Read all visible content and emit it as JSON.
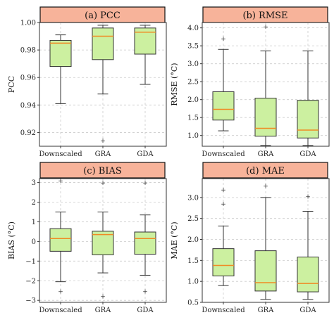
{
  "colors": {
    "box_fill": "#ccf0a0",
    "median": "#f08a24",
    "title_fill": "#f7b39a",
    "grid": "#cccccc",
    "frame": "#333333"
  },
  "chart_data": [
    {
      "type": "box",
      "title": "(a) PCC",
      "ylabel": "PCC",
      "ylim": [
        0.91,
        1.0
      ],
      "yticks": [
        0.92,
        0.94,
        0.96,
        0.98,
        1.0
      ],
      "ytick_labels": [
        "0.92",
        "0.94",
        "0.96",
        "0.98",
        "1.00"
      ],
      "categories": [
        "Downscaled",
        "GRA",
        "GDA"
      ],
      "boxes": [
        {
          "whisker_low": 0.941,
          "q1": 0.968,
          "median": 0.985,
          "q3": 0.987,
          "whisker_high": 0.991,
          "outliers": []
        },
        {
          "whisker_low": 0.948,
          "q1": 0.973,
          "median": 0.99,
          "q3": 0.996,
          "whisker_high": 0.998,
          "outliers": [
            0.914
          ]
        },
        {
          "whisker_low": 0.955,
          "q1": 0.977,
          "median": 0.993,
          "q3": 0.996,
          "whisker_high": 0.998,
          "outliers": []
        }
      ],
      "grid": true
    },
    {
      "type": "box",
      "title": "(b) RMSE",
      "ylabel": "RMSE (°C)",
      "ylim": [
        0.7,
        4.15
      ],
      "yticks": [
        1.0,
        1.5,
        2.0,
        2.5,
        3.0,
        3.5,
        4.0
      ],
      "ytick_labels": [
        "1.0",
        "1.5",
        "2.0",
        "2.5",
        "3.0",
        "3.5",
        "4.0"
      ],
      "categories": [
        "Downscaled",
        "GRA",
        "GDA"
      ],
      "boxes": [
        {
          "whisker_low": 1.13,
          "q1": 1.43,
          "median": 1.73,
          "q3": 2.22,
          "whisker_high": 3.4,
          "outliers": [
            3.7
          ]
        },
        {
          "whisker_low": 0.72,
          "q1": 0.98,
          "median": 1.2,
          "q3": 2.04,
          "whisker_high": 3.36,
          "outliers": [
            4.03
          ]
        },
        {
          "whisker_low": 0.72,
          "q1": 0.93,
          "median": 1.15,
          "q3": 1.98,
          "whisker_high": 3.36,
          "outliers": []
        }
      ],
      "grid": true
    },
    {
      "type": "box",
      "title": "(c) BIAS",
      "ylabel": "BIAS (°C)",
      "ylim": [
        -3.1,
        3.2
      ],
      "yticks": [
        -3,
        -2,
        -1,
        0,
        1,
        2,
        3
      ],
      "ytick_labels": [
        "−3",
        "−2",
        "−1",
        "0",
        "1",
        "2",
        "3"
      ],
      "categories": [
        "Downscaled",
        "GRA",
        "GDA"
      ],
      "boxes": [
        {
          "whisker_low": -2.05,
          "q1": -0.5,
          "median": 0.15,
          "q3": 0.65,
          "whisker_high": 1.5,
          "outliers": [
            -2.55,
            3.1
          ]
        },
        {
          "whisker_low": -1.6,
          "q1": -0.68,
          "median": 0.35,
          "q3": 0.52,
          "whisker_high": 1.5,
          "outliers": [
            -2.8,
            2.98
          ]
        },
        {
          "whisker_low": -1.72,
          "q1": -0.65,
          "median": 0.15,
          "q3": 0.48,
          "whisker_high": 1.35,
          "outliers": [
            -2.55,
            2.98
          ]
        }
      ],
      "grid": true
    },
    {
      "type": "box",
      "title": "(d) MAE",
      "ylabel": "MAE (°C)",
      "ylim": [
        0.5,
        3.45
      ],
      "yticks": [
        0.5,
        1.0,
        1.5,
        2.0,
        2.5,
        3.0
      ],
      "ytick_labels": [
        "0.5",
        "1.0",
        "1.5",
        "2.0",
        "2.5",
        "3.0"
      ],
      "categories": [
        "Downscaled",
        "GRA",
        "GDA"
      ],
      "boxes": [
        {
          "whisker_low": 0.9,
          "q1": 1.13,
          "median": 1.38,
          "q3": 1.78,
          "whisker_high": 2.32,
          "outliers": [
            2.85,
            3.18
          ]
        },
        {
          "whisker_low": 0.57,
          "q1": 0.77,
          "median": 0.97,
          "q3": 1.73,
          "whisker_high": 3.0,
          "outliers": [
            3.27
          ]
        },
        {
          "whisker_low": 0.57,
          "q1": 0.75,
          "median": 0.95,
          "q3": 1.58,
          "whisker_high": 2.67,
          "outliers": [
            3.02
          ]
        }
      ],
      "grid": true
    }
  ]
}
